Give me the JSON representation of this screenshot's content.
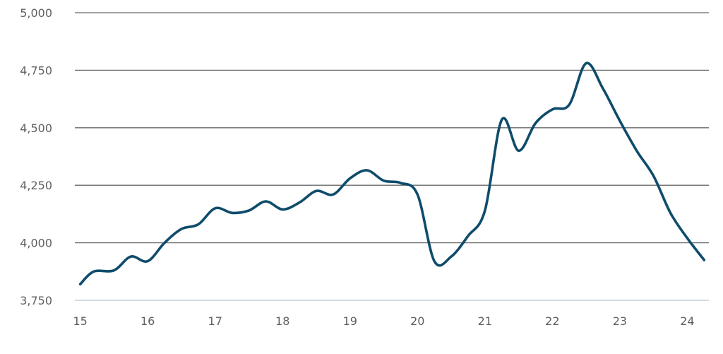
{
  "chart_data": {
    "type": "line",
    "title": "",
    "xlabel": "",
    "ylabel": "",
    "x_ticks": [
      "15",
      "16",
      "17",
      "18",
      "19",
      "20",
      "21",
      "22",
      "23",
      "24"
    ],
    "y_ticks": [
      "3,750",
      "4,000",
      "4,250",
      "4,500",
      "4,750",
      "5,000"
    ],
    "xlim": [
      14.92,
      24.32
    ],
    "ylim": [
      3750,
      5000
    ],
    "grid": true,
    "legend": "none",
    "colors": {
      "line": "#0f4c6b",
      "grid": "#6a6a6a",
      "baseline": "#b9c7cf"
    },
    "series": [
      {
        "x": [
          15.0,
          15.2,
          15.5,
          15.75,
          16.0,
          16.25,
          16.5,
          16.75,
          17.0,
          17.25,
          17.5,
          17.75,
          18.0,
          18.25,
          18.5,
          18.75,
          19.0,
          19.25,
          19.5,
          19.75,
          20.0,
          20.25,
          20.5,
          20.75,
          21.0,
          21.25,
          21.5,
          21.75,
          22.0,
          22.25,
          22.5,
          22.75,
          23.0,
          23.25,
          23.5,
          23.75,
          24.0,
          24.25
        ],
        "y": [
          3820,
          3875,
          3880,
          3940,
          3920,
          4000,
          4060,
          4080,
          4150,
          4130,
          4140,
          4180,
          4145,
          4175,
          4225,
          4210,
          4280,
          4315,
          4270,
          4260,
          4210,
          3920,
          3940,
          4030,
          4140,
          4535,
          4400,
          4520,
          4580,
          4600,
          4780,
          4670,
          4530,
          4400,
          4290,
          4130,
          4020,
          3925
        ]
      }
    ]
  }
}
